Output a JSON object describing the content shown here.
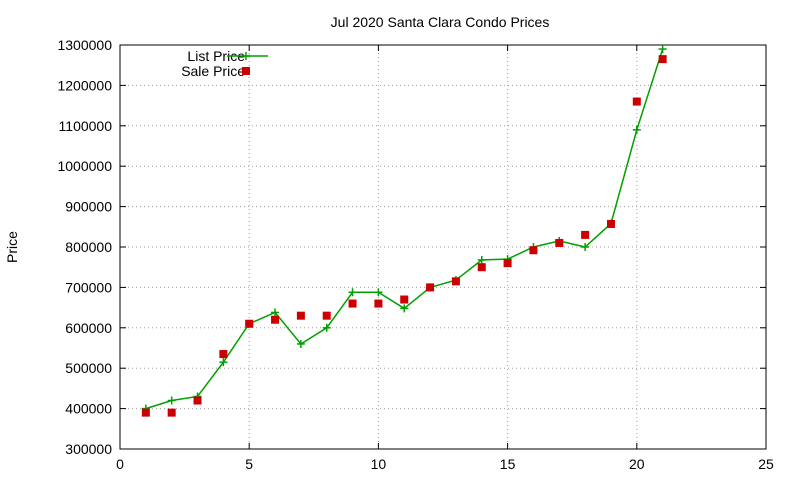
{
  "chart_data": {
    "type": "line",
    "title": "Jul 2020 Santa Clara Condo Prices",
    "xlabel": "",
    "ylabel": "Price",
    "xlim": [
      0,
      25
    ],
    "ylim": [
      300000,
      1300000
    ],
    "x_ticks": [
      0,
      5,
      10,
      15,
      20,
      25
    ],
    "y_ticks": [
      300000,
      400000,
      500000,
      600000,
      700000,
      800000,
      900000,
      1000000,
      1100000,
      1200000,
      1300000
    ],
    "grid": true,
    "legend_position": "top-left",
    "series": [
      {
        "name": "List Price",
        "style": "line-with-plus-markers",
        "color": "#00a000",
        "x": [
          1,
          2,
          3,
          4,
          5,
          6,
          7,
          8,
          9,
          10,
          11,
          12,
          13,
          14,
          15,
          16,
          17,
          18,
          19,
          20,
          21
        ],
        "y": [
          400000,
          420000,
          430000,
          515000,
          610000,
          638000,
          560000,
          600000,
          688000,
          688000,
          648000,
          700000,
          718000,
          768000,
          770000,
          800000,
          815000,
          800000,
          858000,
          1090000,
          1290000
        ]
      },
      {
        "name": "Sale Price",
        "style": "square-markers",
        "color": "#cc0000",
        "x": [
          1,
          2,
          3,
          4,
          5,
          6,
          7,
          8,
          9,
          10,
          11,
          12,
          13,
          14,
          15,
          16,
          17,
          18,
          19,
          20,
          21
        ],
        "y": [
          390000,
          390000,
          420000,
          535000,
          610000,
          620000,
          630000,
          630000,
          660000,
          660000,
          670000,
          700000,
          715000,
          750000,
          760000,
          792000,
          810000,
          830000,
          857000,
          1160000,
          1265000
        ]
      }
    ]
  }
}
